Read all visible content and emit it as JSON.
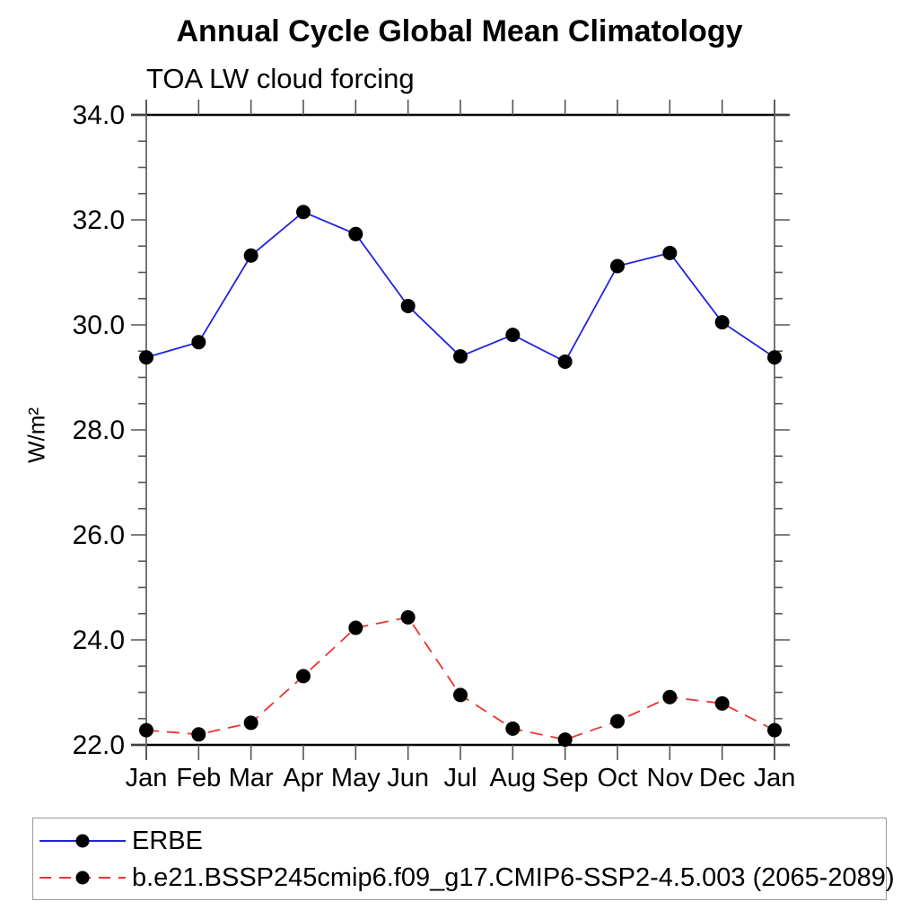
{
  "page": {
    "title": "Annual Cycle Global Mean Climatology",
    "subtitle": "TOA LW cloud forcing",
    "ylabel": "W/m²"
  },
  "chart_data": {
    "type": "line",
    "title": "Annual Cycle Global Mean Climatology",
    "subtitle": "TOA LW cloud forcing",
    "xlabel": "",
    "ylabel": "W/m²",
    "categories": [
      "Jan",
      "Feb",
      "Mar",
      "Apr",
      "May",
      "Jun",
      "Jul",
      "Aug",
      "Sep",
      "Oct",
      "Nov",
      "Dec",
      "Jan"
    ],
    "ylim": [
      22.0,
      34.0
    ],
    "ytick_major_step": 2.0,
    "ytick_minor_step": 0.5,
    "ytick_labels": [
      "22.0",
      "24.0",
      "26.0",
      "28.0",
      "30.0",
      "32.0",
      "34.0"
    ],
    "grid": false,
    "legend_position": "bottom-left",
    "series": [
      {
        "name": "ERBE",
        "color": "#2222e0",
        "line_style": "solid",
        "marker": "circle",
        "marker_color": "#000000",
        "values": [
          29.38,
          29.67,
          31.32,
          32.15,
          31.73,
          30.36,
          29.4,
          29.81,
          29.3,
          31.12,
          31.37,
          30.05,
          29.38
        ]
      },
      {
        "name": "b.e21.BSSP245cmip6.f09_g17.CMIP6-SSP2-4.5.003 (2065-2089)",
        "color": "#ee3333",
        "line_style": "dashed",
        "marker": "circle",
        "marker_color": "#000000",
        "values": [
          22.28,
          22.2,
          22.42,
          23.31,
          24.23,
          24.43,
          22.95,
          22.31,
          22.1,
          22.45,
          22.91,
          22.79,
          22.28
        ]
      }
    ]
  },
  "legend": {
    "entries": [
      {
        "label": "ERBE"
      },
      {
        "label": "b.e21.BSSP245cmip6.f09_g17.CMIP6-SSP2-4.5.003 (2065-2089)"
      }
    ]
  },
  "colors": {
    "horizontal_axis": "#000000",
    "vertical_axis": "#666666",
    "tick": "#555555",
    "text": "#000000",
    "legend_border": "#999999",
    "background": "#ffffff"
  }
}
